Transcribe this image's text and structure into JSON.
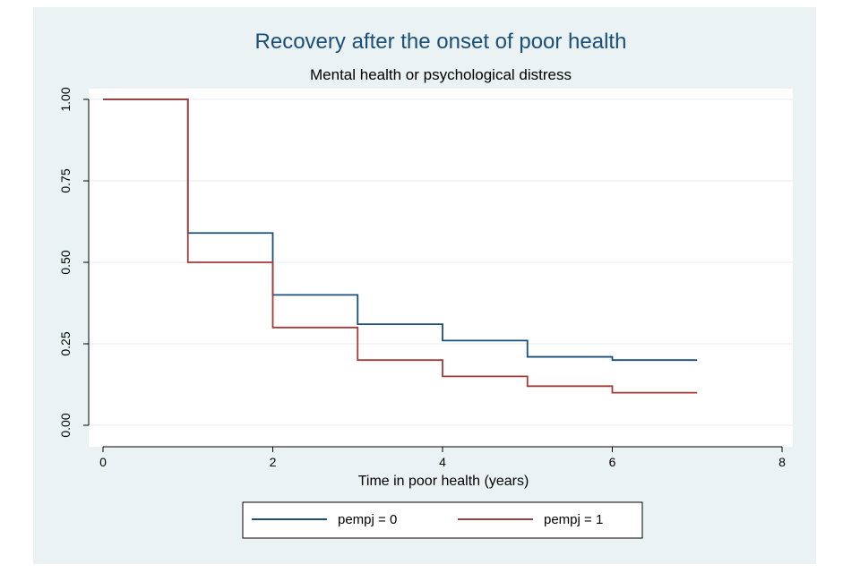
{
  "chart_data": {
    "type": "line",
    "title": "Recovery after the onset of poor health",
    "subtitle": "Mental health or psychological distress",
    "xlabel": "Time in poor health (years)",
    "ylabel": "",
    "xlim": [
      0,
      8
    ],
    "ylim": [
      0,
      1
    ],
    "x_ticks": [
      0,
      2,
      4,
      6,
      8
    ],
    "x_tick_labels": [
      "0",
      "2",
      "4",
      "6",
      "8"
    ],
    "y_ticks": [
      0,
      0.25,
      0.5,
      0.75,
      1
    ],
    "y_tick_labels": [
      "0.00",
      "0.25",
      "0.50",
      "0.75",
      "1.00"
    ],
    "grid": true,
    "step": true,
    "legend_position": "bottom",
    "series": [
      {
        "name": "pempj = 0",
        "color": "#1a4f7a",
        "x": [
          0,
          1,
          2,
          3,
          4,
          5,
          6,
          7
        ],
        "values": [
          1.0,
          0.59,
          0.4,
          0.31,
          0.26,
          0.21,
          0.2,
          0.2
        ]
      },
      {
        "name": "pempj = 1",
        "color": "#a33a3a",
        "x": [
          0,
          1,
          2,
          3,
          4,
          5,
          6,
          7
        ],
        "values": [
          1.0,
          0.5,
          0.3,
          0.2,
          0.15,
          0.12,
          0.1,
          0.1
        ]
      }
    ]
  }
}
